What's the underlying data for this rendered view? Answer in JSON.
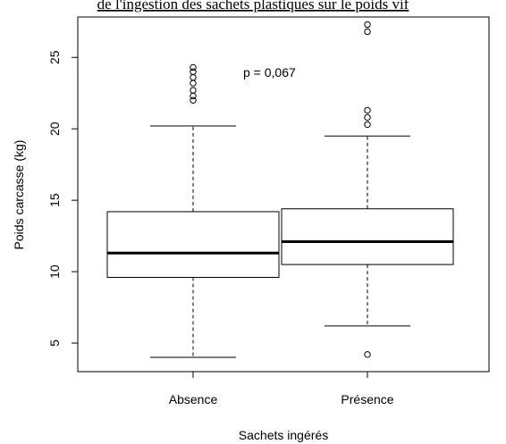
{
  "chart_data": {
    "type": "boxplot",
    "title": "de l'ingestion des sachets plastiques sur le poids vif",
    "xlabel": "Sachets ingérés",
    "ylabel": "Poids carcasse (kg)",
    "ylim": [
      3,
      28
    ],
    "yticks": [
      5,
      10,
      15,
      20,
      25
    ],
    "annotation": "p = 0,067",
    "grid": false,
    "categories": [
      "Absence",
      "Présence"
    ],
    "boxes": [
      {
        "category": "Absence",
        "whisker_low": 4.0,
        "q1": 9.6,
        "median": 11.3,
        "q3": 14.2,
        "whisker_high": 20.2,
        "outliers": [
          22.0,
          22.3,
          22.7,
          23.2,
          23.6,
          24.0,
          24.3
        ]
      },
      {
        "category": "Présence",
        "whisker_low": 6.2,
        "q1": 10.5,
        "median": 12.1,
        "q3": 14.4,
        "whisker_high": 19.5,
        "outliers": [
          4.2,
          20.3,
          20.8,
          21.3,
          26.8,
          27.3
        ]
      }
    ]
  }
}
